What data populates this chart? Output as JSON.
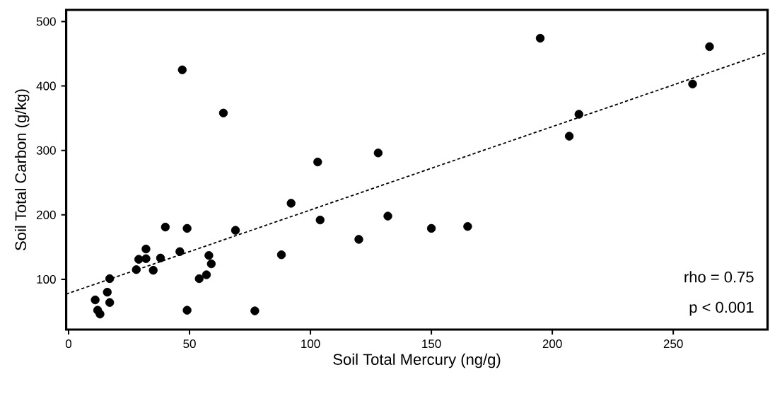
{
  "chart_data": {
    "type": "scatter",
    "xlabel": "Soil Total Mercury (ng/g)",
    "ylabel": "Soil Total Carbon (g/kg)",
    "xlim": [
      -1,
      289
    ],
    "ylim": [
      22,
      518
    ],
    "xticks": [
      0,
      50,
      100,
      150,
      200,
      250
    ],
    "yticks": [
      100,
      200,
      300,
      400,
      500
    ],
    "annotations": [
      "rho = 0.75",
      "p < 0.001"
    ],
    "series": [
      {
        "marker": "circle",
        "color": "#000000",
        "x": [
          47,
          64,
          103,
          128,
          92,
          104,
          132,
          40,
          49,
          69,
          120,
          32,
          46,
          29,
          32,
          38,
          58,
          88,
          28,
          35,
          59,
          57,
          54,
          17,
          16,
          17,
          11,
          12,
          13,
          49,
          77,
          150,
          165,
          195,
          207,
          211,
          258,
          265
        ],
        "values": [
          425,
          358,
          282,
          296,
          218,
          192,
          198,
          181,
          179,
          176,
          162,
          147,
          143,
          131,
          132,
          133,
          137,
          138,
          115,
          114,
          124,
          107,
          101,
          101,
          80,
          64,
          68,
          52,
          46,
          52,
          51,
          179,
          182,
          474,
          322,
          356,
          403,
          461
        ]
      },
      {
        "type": "line",
        "marker": "none",
        "line_style": "dashed",
        "color": "#000000",
        "x": [
          -1,
          289
        ],
        "values": [
          77,
          452
        ]
      }
    ]
  }
}
